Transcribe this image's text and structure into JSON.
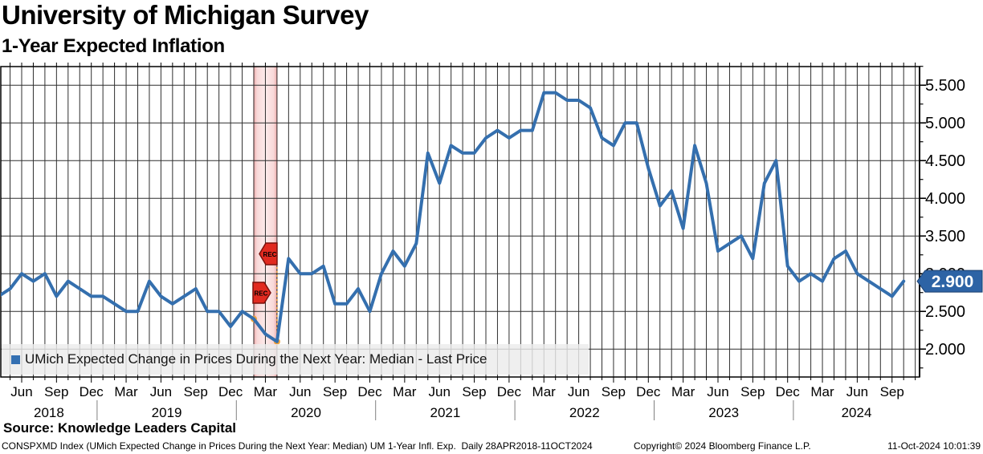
{
  "header": {
    "title": "University of Michigan Survey",
    "subtitle": "1-Year Expected Inflation"
  },
  "legend": {
    "swatch_color": "#3470b2",
    "label": "UMich Expected Change in Prices During the Next Year: Median - Last Price"
  },
  "last_price": {
    "value": "2.900",
    "badge_color": "#2d63a5"
  },
  "chart_data": {
    "type": "line",
    "title": "University of Michigan Survey",
    "subtitle": "1-Year Expected Inflation",
    "series": [
      {
        "name": "UMich Expected Change in Prices During the Next Year: Median",
        "color": "#346fae",
        "start_month": "2018-04",
        "frequency": "monthly",
        "values": [
          2.7,
          2.8,
          3.0,
          2.9,
          3.0,
          2.7,
          2.9,
          2.8,
          2.7,
          2.7,
          2.6,
          2.5,
          2.5,
          2.9,
          2.7,
          2.6,
          2.7,
          2.8,
          2.5,
          2.5,
          2.3,
          2.5,
          2.4,
          2.2,
          2.1,
          3.2,
          3.0,
          3.0,
          3.1,
          2.6,
          2.6,
          2.8,
          2.5,
          3.0,
          3.3,
          3.1,
          3.4,
          4.6,
          4.2,
          4.7,
          4.6,
          4.6,
          4.8,
          4.9,
          4.8,
          4.9,
          4.9,
          5.4,
          5.4,
          5.3,
          5.3,
          5.2,
          4.8,
          4.7,
          5.0,
          5.0,
          4.4,
          3.9,
          4.1,
          3.6,
          4.7,
          4.2,
          3.3,
          3.4,
          3.5,
          3.2,
          4.2,
          4.5,
          3.1,
          2.9,
          3.0,
          2.9,
          3.2,
          3.3,
          3.0,
          2.9,
          2.8,
          2.7,
          2.9
        ]
      }
    ],
    "x_tick_labels": [
      "Jun",
      "Sep",
      "Dec",
      "Mar",
      "Jun",
      "Sep",
      "Dec",
      "Mar",
      "Jun",
      "Sep",
      "Dec",
      "Mar",
      "Jun",
      "Sep",
      "Dec",
      "Mar",
      "Jun",
      "Sep",
      "Dec",
      "Mar",
      "Jun",
      "Sep",
      "Dec",
      "Mar",
      "Jun",
      "Sep"
    ],
    "year_labels": [
      "2018",
      "2019",
      "2020",
      "2021",
      "2022",
      "2023",
      "2024"
    ],
    "y_ticks": [
      2.0,
      2.5,
      3.0,
      3.5,
      4.0,
      4.5,
      5.0,
      5.5
    ],
    "y_tick_labels": [
      "2.000",
      "2.500",
      "3.000",
      "3.500",
      "4.000",
      "4.500",
      "5.000",
      "5.500"
    ],
    "ylim": [
      1.63,
      5.74
    ],
    "grid": "on",
    "legend_position": "bottom-left",
    "recession_band": {
      "start_month": "2020-02",
      "end_month": "2020-04",
      "label": "REC",
      "fill_color": "#f8d8d8",
      "marker_color": "#e12a20"
    },
    "annotations": {
      "dot_color": "#efa23c",
      "dots": [
        {
          "month": "2020-02",
          "value": 2.4
        },
        {
          "month": "2020-04",
          "value": 2.1
        }
      ],
      "dotted_line_month": "2020-04",
      "last_price": "2.900"
    }
  },
  "footer": {
    "source": "Source: Knowledge Leaders Capital",
    "info_left": "CONSPXMD Index (UMich Expected Change in Prices During the Next Year: Median) UM 1-Year Infl. Exp.  Daily 28APR2018-11OCT2024",
    "copyright": "Copyright© 2024 Bloomberg Finance L.P.",
    "timestamp": "11-Oct-2024 10:01:39"
  }
}
